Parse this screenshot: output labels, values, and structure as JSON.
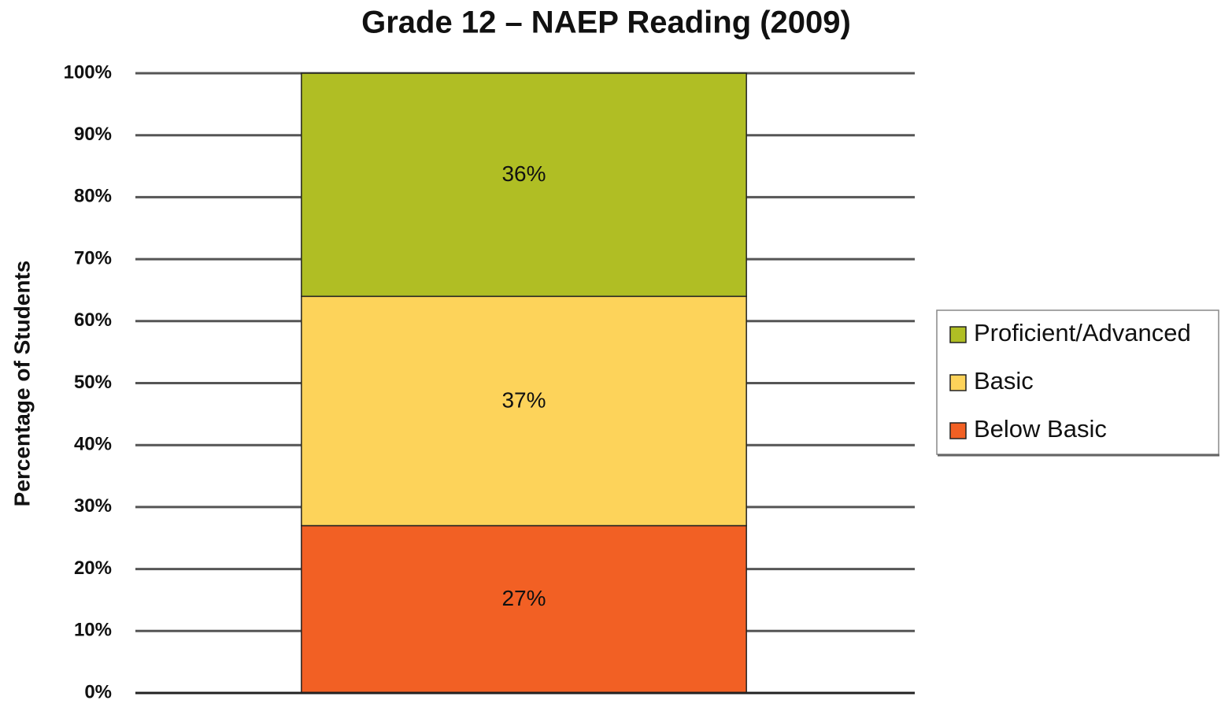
{
  "chart_data": {
    "type": "stacked_bar",
    "title": "Grade 12 – NAEP Reading (2009)",
    "y_label": "Percentage of Students",
    "categories": [
      null
    ],
    "series": [
      {
        "name": "Below Basic",
        "color": "#f26024",
        "values": [
          27
        ],
        "value_labels": [
          "27%"
        ]
      },
      {
        "name": "Basic",
        "color": "#fdd35a",
        "values": [
          37
        ],
        "value_labels": [
          "37%"
        ]
      },
      {
        "name": "Proficient/Advanced",
        "color": "#b0be24",
        "values": [
          36
        ],
        "value_labels": [
          "36%"
        ]
      }
    ],
    "ylim": [
      0,
      100
    ],
    "yticks": [
      {
        "value": 0,
        "label": "0%"
      },
      {
        "value": 10,
        "label": "10%"
      },
      {
        "value": 20,
        "label": "20%"
      },
      {
        "value": 30,
        "label": "30%"
      },
      {
        "value": 40,
        "label": "40%"
      },
      {
        "value": 50,
        "label": "50%"
      },
      {
        "value": 60,
        "label": "60%"
      },
      {
        "value": 70,
        "label": "70%"
      },
      {
        "value": 80,
        "label": "80%"
      },
      {
        "value": 90,
        "label": "90%"
      },
      {
        "value": 100,
        "label": "100%"
      }
    ],
    "grid": true,
    "legend": "right"
  }
}
